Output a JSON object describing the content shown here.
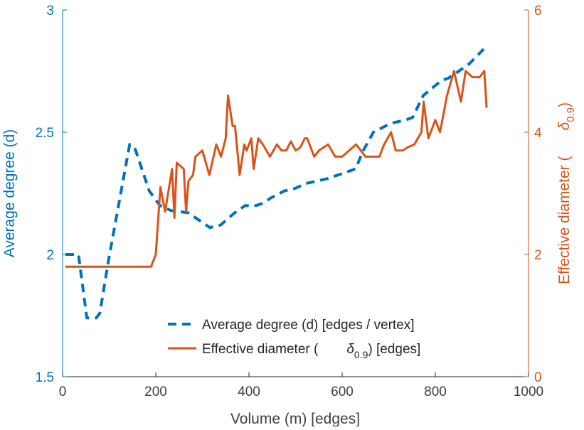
{
  "chart_data": {
    "type": "line",
    "xlabel": "Volume (m) [edges]",
    "ylabel_left": "Average degree (d)",
    "ylabel_right_prefix": "Effective diameter (",
    "ylabel_right_symbol": "δ",
    "ylabel_right_sub": "0.9",
    "ylabel_right_suffix": ")",
    "xlim": [
      0,
      1000
    ],
    "ylim_left": [
      1.5,
      3
    ],
    "ylim_right": [
      0,
      6
    ],
    "xticks": [
      "0",
      "200",
      "400",
      "600",
      "800",
      "1000"
    ],
    "yticks_left": [
      "1.5",
      "2",
      "2.5",
      "3"
    ],
    "yticks_right": [
      "0",
      "2",
      "4",
      "6"
    ],
    "grid": false,
    "legend_position": "bottom-right",
    "colors": {
      "left": "#0072BD",
      "right": "#D95319"
    },
    "series": [
      {
        "name": "Average degree (d) [edges / vertex]",
        "axis": "left",
        "style": "dashed",
        "x": [
          6,
          34,
          52,
          72,
          80,
          98,
          144,
          156,
          186,
          209,
          232,
          270,
          293,
          316,
          339,
          369,
          392,
          415,
          431,
          446,
          476,
          499,
          522,
          545,
          568,
          599,
          629,
          644,
          667,
          698,
          713,
          736,
          751,
          774,
          812,
          827,
          843,
          873,
          904
        ],
        "y": [
          2.0,
          2.0,
          1.74,
          1.74,
          1.76,
          1.97,
          2.45,
          2.43,
          2.26,
          2.2,
          2.18,
          2.17,
          2.14,
          2.11,
          2.12,
          2.17,
          2.2,
          2.2,
          2.21,
          2.23,
          2.26,
          2.27,
          2.29,
          2.3,
          2.31,
          2.33,
          2.35,
          2.42,
          2.5,
          2.53,
          2.54,
          2.55,
          2.56,
          2.65,
          2.71,
          2.72,
          2.74,
          2.78,
          2.84
        ]
      },
      {
        "name_prefix": "Effective diameter (",
        "name_symbol": "δ",
        "name_sub": "0.9",
        "name_suffix": ") [edges]",
        "axis": "right",
        "style": "solid",
        "x": [
          6,
          190,
          200,
          210,
          220,
          235,
          240,
          245,
          260,
          265,
          270,
          280,
          285,
          300,
          315,
          330,
          340,
          350,
          355,
          365,
          370,
          380,
          390,
          395,
          405,
          410,
          420,
          430,
          445,
          460,
          470,
          480,
          490,
          500,
          510,
          520,
          525,
          540,
          550,
          570,
          585,
          600,
          615,
          630,
          650,
          665,
          680,
          690,
          705,
          715,
          730,
          740,
          755,
          770,
          775,
          785,
          800,
          810,
          825,
          840,
          855,
          865,
          880,
          895,
          905,
          910
        ],
        "y": [
          1.8,
          1.8,
          2.0,
          3.1,
          2.7,
          3.4,
          2.6,
          3.5,
          3.4,
          2.7,
          3.2,
          3.3,
          3.6,
          3.7,
          3.3,
          3.8,
          3.6,
          3.9,
          4.6,
          4.1,
          4.1,
          3.3,
          3.8,
          3.7,
          3.9,
          3.4,
          3.9,
          3.8,
          3.6,
          3.8,
          3.7,
          3.7,
          3.85,
          3.7,
          3.75,
          3.9,
          3.9,
          3.6,
          3.7,
          3.8,
          3.6,
          3.6,
          3.7,
          3.8,
          3.6,
          3.6,
          3.6,
          3.8,
          4.0,
          3.7,
          3.7,
          3.75,
          3.8,
          4.0,
          4.5,
          3.9,
          4.2,
          4.0,
          4.6,
          5.0,
          4.5,
          5.0,
          4.9,
          4.9,
          5.0,
          4.4
        ]
      }
    ]
  }
}
